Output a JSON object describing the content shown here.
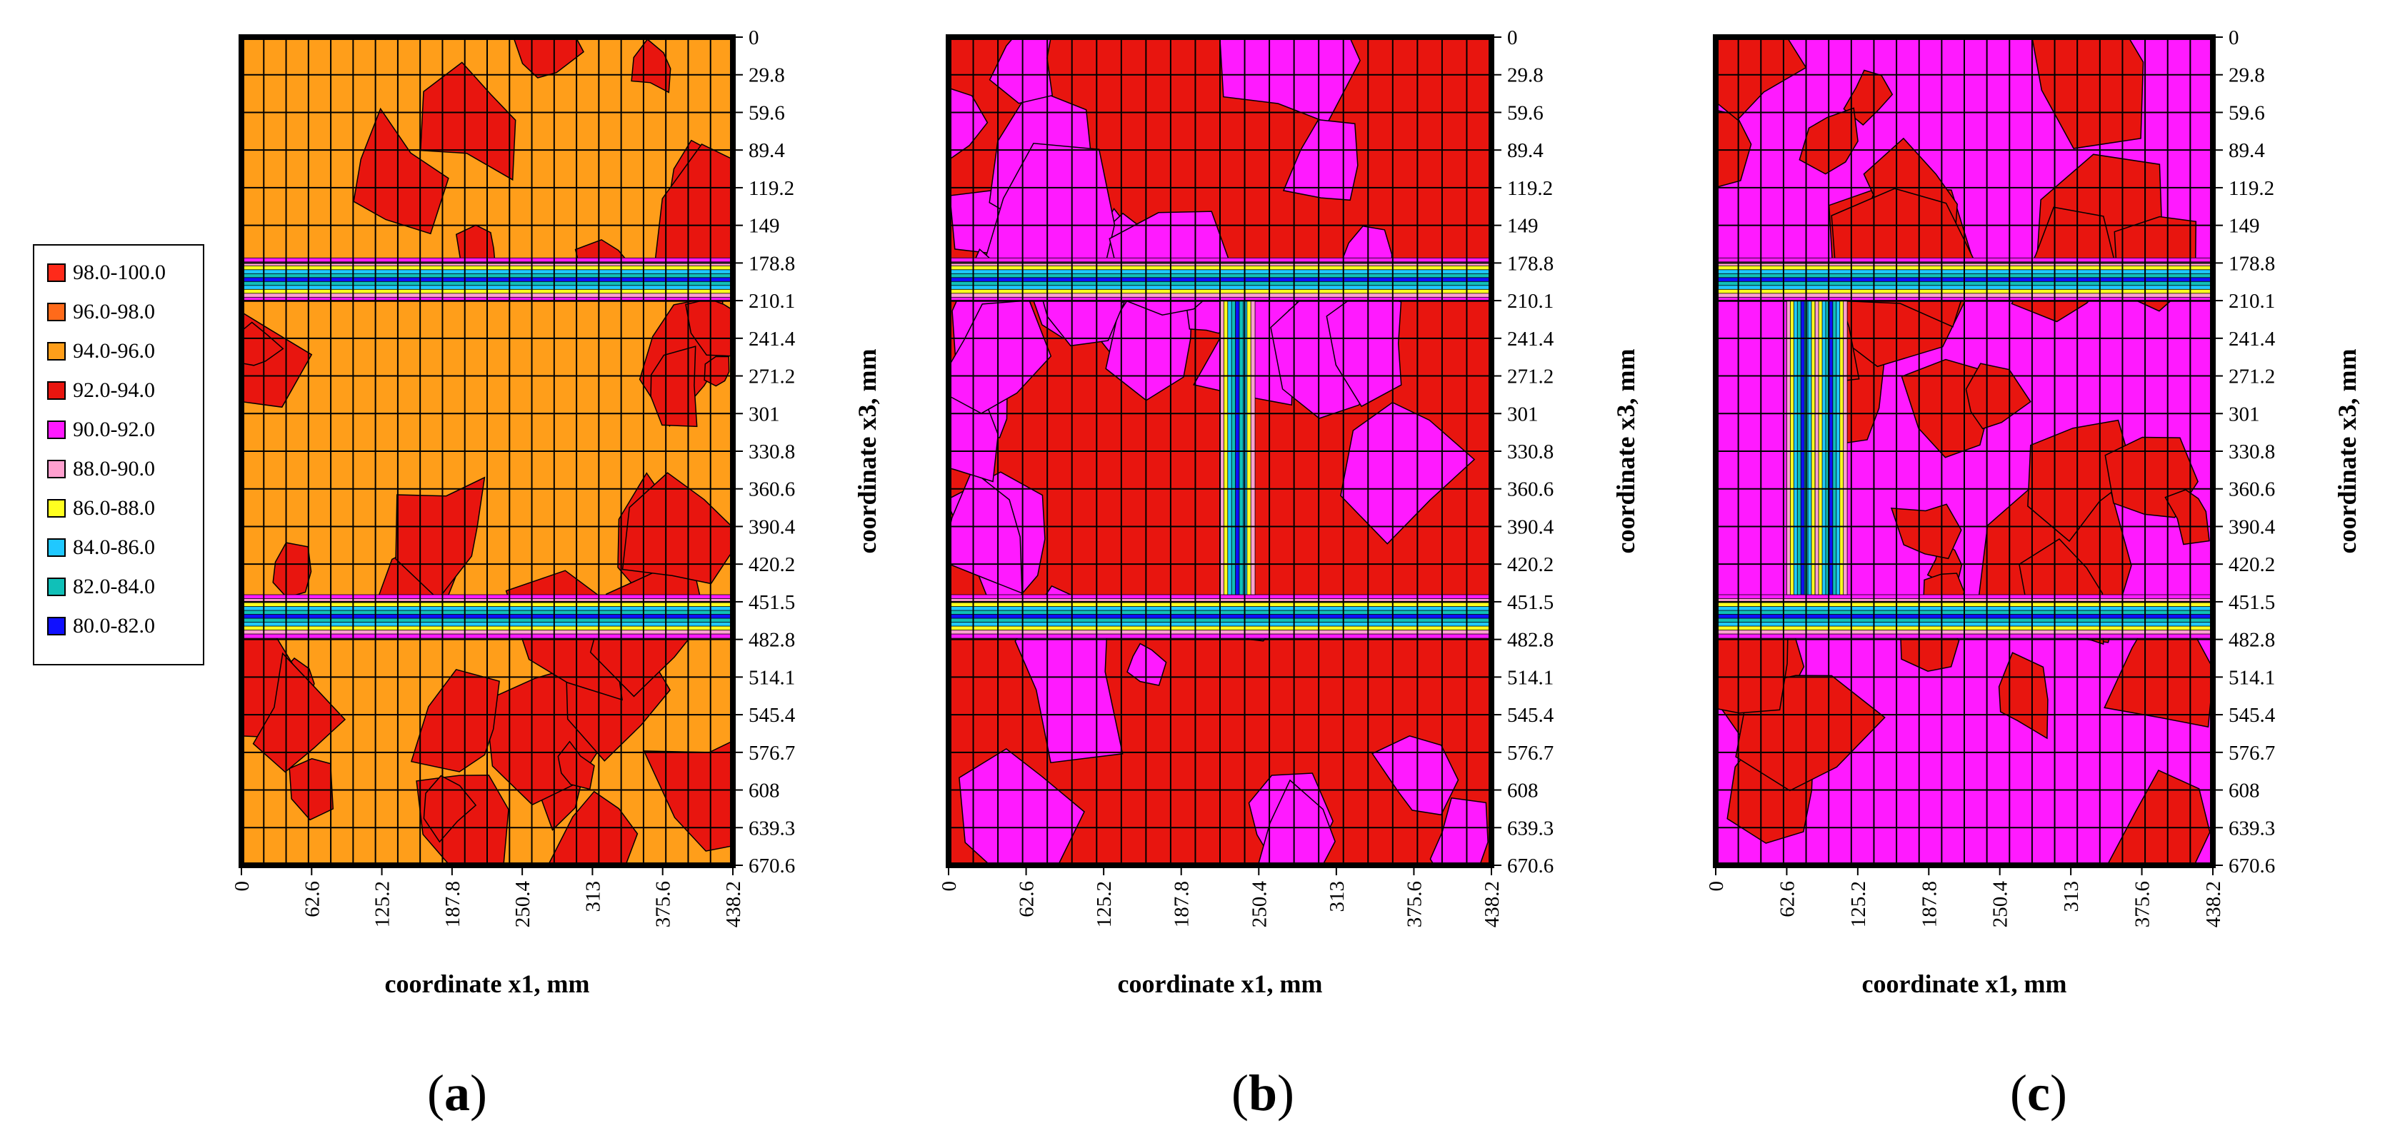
{
  "chart_data": {
    "type": "heatmap",
    "description_units": "%",
    "x_axis": {
      "label": "coordinate x1, mm",
      "ticks": [
        "0",
        "62.6",
        "125.2",
        "187.8",
        "250.4",
        "313",
        "375.6",
        "438.2"
      ],
      "range": [
        0,
        438.2
      ]
    },
    "y_axis": {
      "label": "coordinate x3, mm",
      "ticks": [
        "0",
        "29.8",
        "59.6",
        "89.4",
        "119.2",
        "149",
        "178.8",
        "210.1",
        "241.4",
        "271.2",
        "301",
        "330.8",
        "360.6",
        "390.4",
        "420.2",
        "451.5",
        "482.8",
        "514.1",
        "545.4",
        "576.7",
        "608",
        "639.3",
        "670.6"
      ],
      "range": [
        0,
        670.6
      ]
    },
    "legend": [
      {
        "label": "98.0-100.0",
        "color": "#ff2a1a"
      },
      {
        "label": "96.0-98.0",
        "color": "#ff6a1a"
      },
      {
        "label": "94.0-96.0",
        "color": "#ff9e1a"
      },
      {
        "label": "92.0-94.0",
        "color": "#e8150f"
      },
      {
        "label": "90.0-92.0",
        "color": "#ff1aff"
      },
      {
        "label": "88.0-90.0",
        "color": "#ffa0cf"
      },
      {
        "label": "86.0-88.0",
        "color": "#ffff20"
      },
      {
        "label": "84.0-86.0",
        "color": "#20c8ff"
      },
      {
        "label": "82.0-84.0",
        "color": "#10c0b8"
      },
      {
        "label": "80.0-82.0",
        "color": "#1010ff"
      }
    ],
    "panels": [
      {
        "label": "a",
        "background_class": "94.0-96.0",
        "bands_at": [
          178.8,
          451.5
        ],
        "vertical_bands_at": [],
        "dominant_classes": [
          "94.0-96.0",
          "92.0-94.0"
        ]
      },
      {
        "label": "b",
        "background_class": "92.0-94.0",
        "bands_at": [
          178.8,
          451.5
        ],
        "vertical_bands_at": [
          219.1
        ],
        "dominant_classes": [
          "92.0-94.0",
          "90.0-92.0"
        ]
      },
      {
        "label": "c",
        "background_class": "90.0-92.0",
        "bands_at": [
          178.8,
          451.5
        ],
        "vertical_bands_at": [
          62.6,
          87.6
        ],
        "dominant_classes": [
          "90.0-92.0",
          "92.0-94.0"
        ]
      }
    ]
  }
}
